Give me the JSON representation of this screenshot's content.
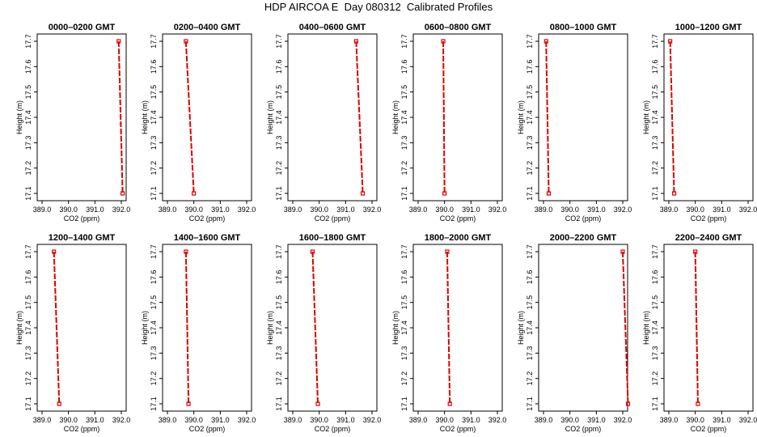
{
  "figure": {
    "title": "HDP AIRCOA E  Day 080312  Calibrated Profiles"
  },
  "chart_data": [
    {
      "type": "line",
      "title": "0000–0200 GMT",
      "xlabel": "CO2 (ppm)",
      "ylabel": "Height (m)",
      "xlim": [
        389.0,
        392.0
      ],
      "ylim": [
        17.1,
        17.7
      ],
      "xticks": [
        "389.0",
        "390.0",
        "391.0",
        "392.0"
      ],
      "yticks": [
        "17.1",
        "17.2",
        "17.3",
        "17.4",
        "17.5",
        "17.6",
        "17.7"
      ],
      "grid": false,
      "series": [
        {
          "x": [
            391.9,
            392.05
          ],
          "y": [
            17.7,
            17.1
          ]
        }
      ]
    },
    {
      "type": "line",
      "title": "0200–0400 GMT",
      "xlabel": "CO2 (ppm)",
      "ylabel": "Height (m)",
      "xlim": [
        389.0,
        392.0
      ],
      "ylim": [
        17.1,
        17.7
      ],
      "xticks": [
        "389.0",
        "390.0",
        "391.0",
        "392.0"
      ],
      "yticks": [
        "17.1",
        "17.2",
        "17.3",
        "17.4",
        "17.5",
        "17.6",
        "17.7"
      ],
      "grid": false,
      "series": [
        {
          "x": [
            389.7,
            390.0
          ],
          "y": [
            17.7,
            17.1
          ]
        }
      ]
    },
    {
      "type": "line",
      "title": "0400–0600 GMT",
      "xlabel": "CO2 (ppm)",
      "ylabel": "Height (m)",
      "xlim": [
        389.0,
        392.0
      ],
      "ylim": [
        17.1,
        17.7
      ],
      "xticks": [
        "389.0",
        "390.0",
        "391.0",
        "392.0"
      ],
      "yticks": [
        "17.1",
        "17.2",
        "17.3",
        "17.4",
        "17.5",
        "17.6",
        "17.7"
      ],
      "grid": false,
      "series": [
        {
          "x": [
            391.4,
            391.65
          ],
          "y": [
            17.7,
            17.1
          ]
        }
      ]
    },
    {
      "type": "line",
      "title": "0600–0800 GMT",
      "xlabel": "CO2 (ppm)",
      "ylabel": "Height (m)",
      "xlim": [
        389.0,
        392.0
      ],
      "ylim": [
        17.1,
        17.7
      ],
      "xticks": [
        "389.0",
        "390.0",
        "391.0",
        "392.0"
      ],
      "yticks": [
        "17.1",
        "17.2",
        "17.3",
        "17.4",
        "17.5",
        "17.6",
        "17.7"
      ],
      "grid": false,
      "series": [
        {
          "x": [
            389.95,
            390.0
          ],
          "y": [
            17.7,
            17.1
          ]
        }
      ]
    },
    {
      "type": "line",
      "title": "0800–1000 GMT",
      "xlabel": "CO2 (ppm)",
      "ylabel": "Height (m)",
      "xlim": [
        389.0,
        392.0
      ],
      "ylim": [
        17.1,
        17.7
      ],
      "xticks": [
        "389.0",
        "390.0",
        "391.0",
        "392.0"
      ],
      "yticks": [
        "17.1",
        "17.2",
        "17.3",
        "17.4",
        "17.5",
        "17.6",
        "17.7"
      ],
      "grid": false,
      "series": [
        {
          "x": [
            389.1,
            389.2
          ],
          "y": [
            17.7,
            17.1
          ]
        }
      ]
    },
    {
      "type": "line",
      "title": "1000–1200 GMT",
      "xlabel": "CO2 (ppm)",
      "ylabel": "Height (m)",
      "xlim": [
        389.0,
        392.0
      ],
      "ylim": [
        17.1,
        17.7
      ],
      "xticks": [
        "389.0",
        "390.0",
        "391.0",
        "392.0"
      ],
      "yticks": [
        "17.1",
        "17.2",
        "17.3",
        "17.4",
        "17.5",
        "17.6",
        "17.7"
      ],
      "grid": false,
      "series": [
        {
          "x": [
            389.05,
            389.2
          ],
          "y": [
            17.7,
            17.1
          ]
        }
      ]
    },
    {
      "type": "line",
      "title": "1200–1400 GMT",
      "xlabel": "CO2 (ppm)",
      "ylabel": "Height (m)",
      "xlim": [
        389.0,
        392.0
      ],
      "ylim": [
        17.1,
        17.7
      ],
      "xticks": [
        "389.0",
        "390.0",
        "391.0",
        "392.0"
      ],
      "yticks": [
        "17.1",
        "17.2",
        "17.3",
        "17.4",
        "17.5",
        "17.6",
        "17.7"
      ],
      "grid": false,
      "series": [
        {
          "x": [
            389.45,
            389.65
          ],
          "y": [
            17.7,
            17.1
          ]
        }
      ]
    },
    {
      "type": "line",
      "title": "1400–1600 GMT",
      "xlabel": "CO2 (ppm)",
      "ylabel": "Height (m)",
      "xlim": [
        389.0,
        392.0
      ],
      "ylim": [
        17.1,
        17.7
      ],
      "xticks": [
        "389.0",
        "390.0",
        "391.0",
        "392.0"
      ],
      "yticks": [
        "17.1",
        "17.2",
        "17.3",
        "17.4",
        "17.5",
        "17.6",
        "17.7"
      ],
      "grid": false,
      "series": [
        {
          "x": [
            389.7,
            389.8
          ],
          "y": [
            17.7,
            17.1
          ]
        }
      ]
    },
    {
      "type": "line",
      "title": "1600–1800 GMT",
      "xlabel": "CO2 (ppm)",
      "ylabel": "Height (m)",
      "xlim": [
        389.0,
        392.0
      ],
      "ylim": [
        17.1,
        17.7
      ],
      "xticks": [
        "389.0",
        "390.0",
        "391.0",
        "392.0"
      ],
      "yticks": [
        "17.1",
        "17.2",
        "17.3",
        "17.4",
        "17.5",
        "17.6",
        "17.7"
      ],
      "grid": false,
      "series": [
        {
          "x": [
            389.75,
            389.95
          ],
          "y": [
            17.7,
            17.1
          ]
        }
      ]
    },
    {
      "type": "line",
      "title": "1800–2000 GMT",
      "xlabel": "CO2 (ppm)",
      "ylabel": "Height (m)",
      "xlim": [
        389.0,
        392.0
      ],
      "ylim": [
        17.1,
        17.7
      ],
      "xticks": [
        "389.0",
        "390.0",
        "391.0",
        "392.0"
      ],
      "yticks": [
        "17.1",
        "17.2",
        "17.3",
        "17.4",
        "17.5",
        "17.6",
        "17.7"
      ],
      "grid": false,
      "series": [
        {
          "x": [
            390.1,
            390.2
          ],
          "y": [
            17.7,
            17.1
          ]
        }
      ]
    },
    {
      "type": "line",
      "title": "2000–2200 GMT",
      "xlabel": "CO2 (ppm)",
      "ylabel": "Height (m)",
      "xlim": [
        389.0,
        392.0
      ],
      "ylim": [
        17.1,
        17.7
      ],
      "xticks": [
        "389.0",
        "390.0",
        "391.0",
        "392.0"
      ],
      "yticks": [
        "17.1",
        "17.2",
        "17.3",
        "17.4",
        "17.5",
        "17.6",
        "17.7"
      ],
      "grid": false,
      "series": [
        {
          "x": [
            392.0,
            392.2
          ],
          "y": [
            17.7,
            17.1
          ]
        }
      ]
    },
    {
      "type": "line",
      "title": "2200–2400 GMT",
      "xlabel": "CO2 (ppm)",
      "ylabel": "Height (m)",
      "xlim": [
        389.0,
        392.0
      ],
      "ylim": [
        17.1,
        17.7
      ],
      "xticks": [
        "389.0",
        "390.0",
        "391.0",
        "392.0"
      ],
      "yticks": [
        "17.1",
        "17.2",
        "17.3",
        "17.4",
        "17.5",
        "17.6",
        "17.7"
      ],
      "grid": false,
      "series": [
        {
          "x": [
            390.0,
            390.1
          ],
          "y": [
            17.7,
            17.1
          ]
        }
      ]
    }
  ],
  "colors": {
    "series": "#dd0000",
    "axis": "#000000"
  }
}
